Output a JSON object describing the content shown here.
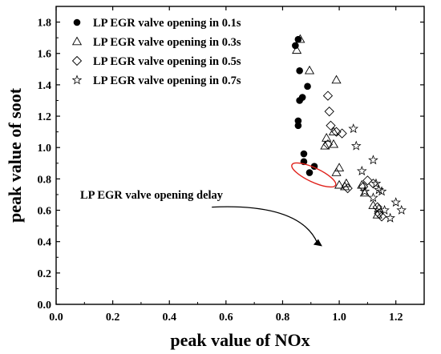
{
  "chart_data": {
    "type": "scatter",
    "title": "",
    "xlabel": "peak value of NOx",
    "ylabel": "peak value of soot",
    "xlim": [
      0.0,
      1.3
    ],
    "ylim": [
      0.0,
      1.9
    ],
    "xticks": [
      "0.0",
      "0.2",
      "0.4",
      "0.6",
      "0.8",
      "1.0",
      "1.2"
    ],
    "yticks": [
      "0.0",
      "0.2",
      "0.4",
      "0.6",
      "0.8",
      "1.0",
      "1.2",
      "1.4",
      "1.6",
      "1.8"
    ],
    "grid": false,
    "legend_position": "top-left",
    "series": [
      {
        "name": "LP EGR valve opening in 0.1s",
        "marker": "filled-circle",
        "points": [
          [
            0.845,
            1.65
          ],
          [
            0.855,
            1.69
          ],
          [
            0.86,
            1.49
          ],
          [
            0.888,
            1.39
          ],
          [
            0.86,
            1.3
          ],
          [
            0.87,
            1.32
          ],
          [
            0.855,
            1.17
          ],
          [
            0.855,
            1.14
          ],
          [
            0.875,
            0.96
          ],
          [
            0.875,
            0.91
          ],
          [
            0.912,
            0.88
          ],
          [
            0.895,
            0.84
          ]
        ]
      },
      {
        "name": "LP EGR valve opening in 0.3s",
        "marker": "open-triangle",
        "points": [
          [
            0.862,
            1.69
          ],
          [
            0.85,
            1.62
          ],
          [
            0.895,
            1.49
          ],
          [
            0.99,
            1.43
          ],
          [
            0.95,
            1.01
          ],
          [
            0.98,
            1.02
          ],
          [
            0.955,
            1.06
          ],
          [
            0.98,
            1.1
          ],
          [
            1.0,
            0.87
          ],
          [
            0.99,
            0.84
          ],
          [
            1.025,
            0.77
          ],
          [
            1.02,
            0.75
          ],
          [
            1.0,
            0.76
          ],
          [
            1.08,
            0.76
          ],
          [
            1.09,
            0.71
          ],
          [
            1.12,
            0.63
          ],
          [
            1.14,
            0.61
          ],
          [
            1.135,
            0.57
          ]
        ]
      },
      {
        "name": "LP EGR valve opening in 0.5s",
        "marker": "open-diamond",
        "points": [
          [
            0.96,
            1.33
          ],
          [
            0.965,
            1.23
          ],
          [
            0.97,
            1.14
          ],
          [
            0.99,
            1.1
          ],
          [
            1.01,
            1.09
          ],
          [
            0.96,
            1.02
          ],
          [
            1.03,
            0.74
          ],
          [
            1.085,
            0.75
          ],
          [
            1.1,
            0.79
          ],
          [
            1.12,
            0.77
          ],
          [
            1.135,
            0.62
          ],
          [
            1.15,
            0.56
          ],
          [
            1.14,
            0.58
          ]
        ]
      },
      {
        "name": "LP EGR valve opening in 0.7s",
        "marker": "open-star",
        "points": [
          [
            1.05,
            1.12
          ],
          [
            1.06,
            1.01
          ],
          [
            1.08,
            0.85
          ],
          [
            1.12,
            0.92
          ],
          [
            1.09,
            0.72
          ],
          [
            1.13,
            0.77
          ],
          [
            1.14,
            0.73
          ],
          [
            1.15,
            0.72
          ],
          [
            1.12,
            0.68
          ],
          [
            1.2,
            0.65
          ],
          [
            1.22,
            0.6
          ],
          [
            1.16,
            0.6
          ],
          [
            1.18,
            0.55
          ]
        ]
      }
    ],
    "annotations": [
      {
        "text": "LP EGR valve opening delay",
        "arrow_from": [
          0.55,
          0.62
        ],
        "arrow_to": [
          0.94,
          0.37
        ]
      }
    ],
    "highlight_ellipse": {
      "center": [
        0.91,
        0.825
      ],
      "radius_x": 0.085,
      "radius_y": 0.045,
      "color": "#e0201a"
    }
  }
}
